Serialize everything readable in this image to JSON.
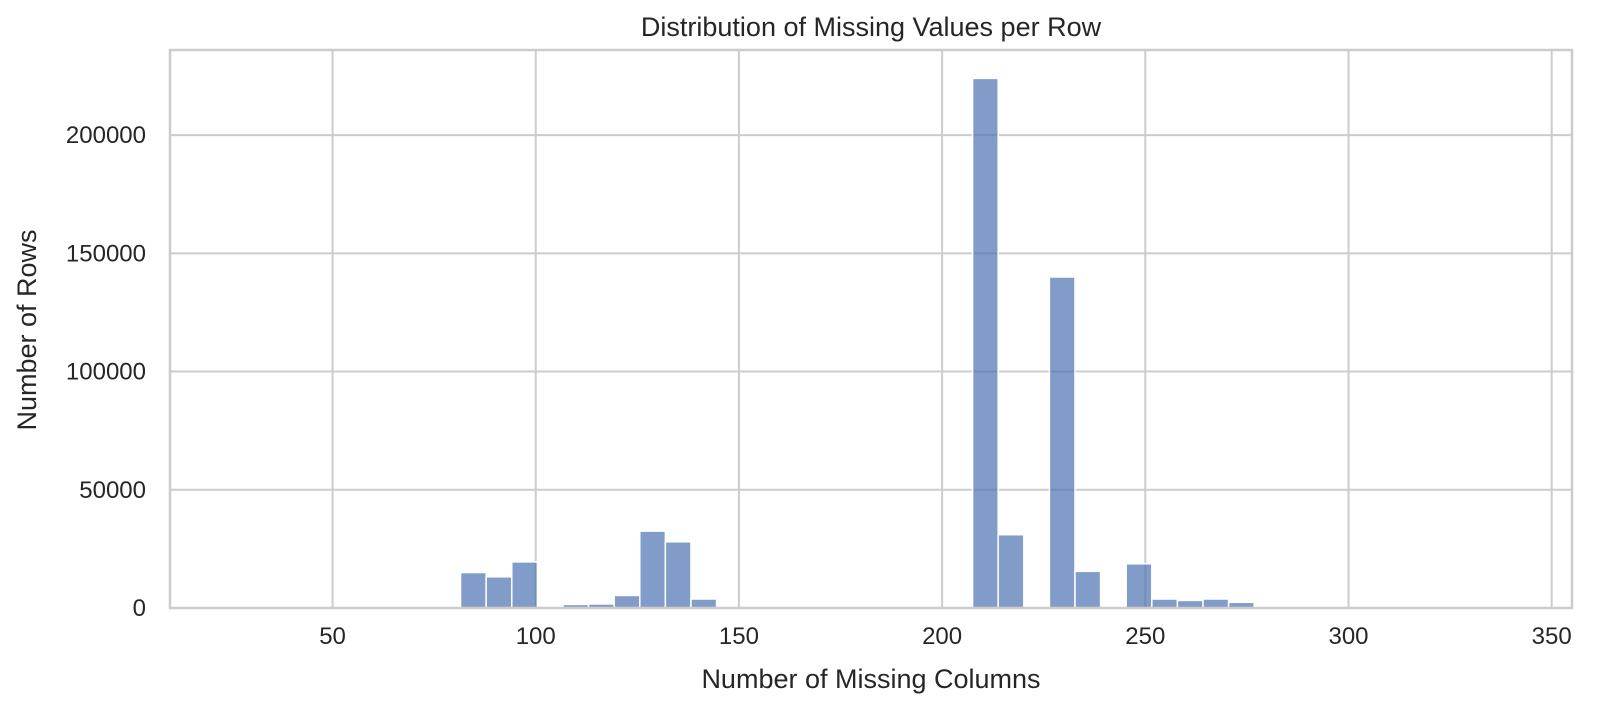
{
  "chart_data": {
    "type": "bar",
    "title": "Distribution of Missing Values per Row",
    "xlabel": "Number of Missing Columns",
    "ylabel": "Number of Rows",
    "xlim": [
      10,
      355
    ],
    "ylim": [
      0,
      236000
    ],
    "xticks": [
      50,
      100,
      150,
      200,
      250,
      300,
      350
    ],
    "yticks": [
      0,
      50000,
      100000,
      150000,
      200000
    ],
    "grid": true,
    "bar_color": "#4c72b0",
    "bar_alpha": 0.7,
    "bins": [
      {
        "x0": 81.5,
        "x1": 87.8,
        "value": 15000
      },
      {
        "x0": 87.8,
        "x1": 94.1,
        "value": 13200
      },
      {
        "x0": 94.1,
        "x1": 100.4,
        "value": 19500
      },
      {
        "x0": 106.7,
        "x1": 113.0,
        "value": 1500
      },
      {
        "x0": 113.0,
        "x1": 119.3,
        "value": 1700
      },
      {
        "x0": 119.3,
        "x1": 125.6,
        "value": 5300
      },
      {
        "x0": 125.6,
        "x1": 131.9,
        "value": 32500
      },
      {
        "x0": 131.9,
        "x1": 138.2,
        "value": 28000
      },
      {
        "x0": 138.2,
        "x1": 144.5,
        "value": 3800
      },
      {
        "x0": 207.5,
        "x1": 213.8,
        "value": 224000
      },
      {
        "x0": 213.8,
        "x1": 220.1,
        "value": 31000
      },
      {
        "x0": 226.4,
        "x1": 232.7,
        "value": 140000
      },
      {
        "x0": 232.7,
        "x1": 239.0,
        "value": 15500
      },
      {
        "x0": 245.3,
        "x1": 251.6,
        "value": 18700
      },
      {
        "x0": 251.6,
        "x1": 257.9,
        "value": 3800
      },
      {
        "x0": 257.9,
        "x1": 264.2,
        "value": 3200
      },
      {
        "x0": 264.2,
        "x1": 270.5,
        "value": 3800
      },
      {
        "x0": 270.5,
        "x1": 276.8,
        "value": 2400
      }
    ]
  }
}
